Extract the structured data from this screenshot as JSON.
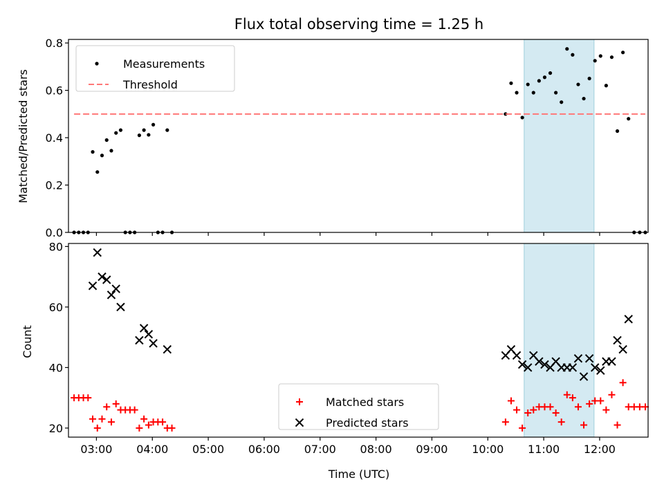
{
  "chart_data": [
    {
      "type": "scatter",
      "title": "Flux total observing time = 1.25 h",
      "xlabel": "",
      "ylabel": "Matched/Predicted stars",
      "xlim": [
        "02:30",
        "12:52"
      ],
      "ylim": [
        0,
        0.815
      ],
      "yticks": [
        "0.0",
        "0.2",
        "0.4",
        "0.6",
        "0.8"
      ],
      "shaded_interval": [
        "10:39",
        "11:54"
      ],
      "legend_position": "top-left",
      "series": [
        {
          "name": "Measurements",
          "marker": "dot",
          "color": "#000000",
          "points": [
            [
              "02:36",
              0
            ],
            [
              "02:41",
              0
            ],
            [
              "02:46",
              0
            ],
            [
              "02:51",
              0
            ],
            [
              "02:56",
              0.34
            ],
            [
              "03:01",
              0.255
            ],
            [
              "03:06",
              0.325
            ],
            [
              "03:11",
              0.39
            ],
            [
              "03:16",
              0.345
            ],
            [
              "03:21",
              0.42
            ],
            [
              "03:26",
              0.432
            ],
            [
              "03:31",
              0
            ],
            [
              "03:36",
              0
            ],
            [
              "03:41",
              0
            ],
            [
              "03:46",
              0.41
            ],
            [
              "03:51",
              0.432
            ],
            [
              "03:56",
              0.412
            ],
            [
              "04:01",
              0.455
            ],
            [
              "04:06",
              0
            ],
            [
              "04:11",
              0
            ],
            [
              "04:16",
              0.432
            ],
            [
              "04:21",
              0
            ],
            [
              "10:19",
              0.5
            ],
            [
              "10:25",
              0.63
            ],
            [
              "10:31",
              0.59
            ],
            [
              "10:37",
              0.485
            ],
            [
              "10:43",
              0.625
            ],
            [
              "10:49",
              0.59
            ],
            [
              "10:55",
              0.64
            ],
            [
              "11:01",
              0.655
            ],
            [
              "11:07",
              0.673
            ],
            [
              "11:13",
              0.59
            ],
            [
              "11:19",
              0.55
            ],
            [
              "11:25",
              0.775
            ],
            [
              "11:31",
              0.75
            ],
            [
              "11:37",
              0.625
            ],
            [
              "11:43",
              0.565
            ],
            [
              "11:49",
              0.65
            ],
            [
              "11:55",
              0.725
            ],
            [
              "12:01",
              0.745
            ],
            [
              "12:07",
              0.62
            ],
            [
              "12:13",
              0.74
            ],
            [
              "12:19",
              0.428
            ],
            [
              "12:25",
              0.76
            ],
            [
              "12:31",
              0.48
            ],
            [
              "12:37",
              0
            ],
            [
              "12:43",
              0
            ],
            [
              "12:49",
              0
            ]
          ]
        },
        {
          "name": "Threshold",
          "type": "line",
          "style": "dashed",
          "color": "#ff7777",
          "points": [
            [
              "02:36",
              0.5
            ],
            [
              "12:49",
              0.5
            ]
          ]
        }
      ]
    },
    {
      "type": "scatter",
      "title": "",
      "xlabel": "Time (UTC)",
      "ylabel": "Count",
      "xlim": [
        "02:30",
        "12:52"
      ],
      "ylim": [
        17,
        81
      ],
      "yticks": [
        "20",
        "40",
        "60",
        "80"
      ],
      "xticks": [
        "03:00",
        "04:00",
        "05:00",
        "06:00",
        "07:00",
        "08:00",
        "09:00",
        "10:00",
        "11:00",
        "12:00"
      ],
      "shaded_interval": [
        "10:39",
        "11:54"
      ],
      "legend_position": "bottom-center",
      "series": [
        {
          "name": "Matched stars",
          "marker": "plus",
          "color": "#ff0000",
          "points": [
            [
              "02:36",
              30
            ],
            [
              "02:41",
              30
            ],
            [
              "02:46",
              30
            ],
            [
              "02:51",
              30
            ],
            [
              "02:56",
              23
            ],
            [
              "03:01",
              20
            ],
            [
              "03:06",
              23
            ],
            [
              "03:11",
              27
            ],
            [
              "03:16",
              22
            ],
            [
              "03:21",
              28
            ],
            [
              "03:26",
              26
            ],
            [
              "03:31",
              26
            ],
            [
              "03:36",
              26
            ],
            [
              "03:41",
              26
            ],
            [
              "03:46",
              20
            ],
            [
              "03:51",
              23
            ],
            [
              "03:56",
              21
            ],
            [
              "04:01",
              22
            ],
            [
              "04:06",
              22
            ],
            [
              "04:11",
              22
            ],
            [
              "04:16",
              20
            ],
            [
              "04:21",
              20
            ],
            [
              "10:19",
              22
            ],
            [
              "10:25",
              29
            ],
            [
              "10:31",
              26
            ],
            [
              "10:37",
              20
            ],
            [
              "10:43",
              25
            ],
            [
              "10:49",
              26
            ],
            [
              "10:55",
              27
            ],
            [
              "11:01",
              27
            ],
            [
              "11:07",
              27
            ],
            [
              "11:13",
              25
            ],
            [
              "11:19",
              22
            ],
            [
              "11:25",
              31
            ],
            [
              "11:31",
              30
            ],
            [
              "11:37",
              27
            ],
            [
              "11:43",
              21
            ],
            [
              "11:49",
              28
            ],
            [
              "11:55",
              29
            ],
            [
              "12:01",
              29
            ],
            [
              "12:07",
              26
            ],
            [
              "12:13",
              31
            ],
            [
              "12:19",
              21
            ],
            [
              "12:25",
              35
            ],
            [
              "12:31",
              27
            ],
            [
              "12:37",
              27
            ],
            [
              "12:43",
              27
            ],
            [
              "12:49",
              27
            ]
          ]
        },
        {
          "name": "Predicted stars",
          "marker": "x",
          "color": "#000000",
          "points": [
            [
              "02:56",
              67
            ],
            [
              "03:01",
              78
            ],
            [
              "03:06",
              70
            ],
            [
              "03:11",
              69
            ],
            [
              "03:16",
              64
            ],
            [
              "03:21",
              66
            ],
            [
              "03:26",
              60
            ],
            [
              "03:46",
              49
            ],
            [
              "03:51",
              53
            ],
            [
              "03:56",
              51
            ],
            [
              "04:01",
              48
            ],
            [
              "04:16",
              46
            ],
            [
              "10:19",
              44
            ],
            [
              "10:25",
              46
            ],
            [
              "10:31",
              44
            ],
            [
              "10:37",
              41
            ],
            [
              "10:43",
              40
            ],
            [
              "10:49",
              44
            ],
            [
              "10:55",
              42
            ],
            [
              "11:01",
              41
            ],
            [
              "11:07",
              40
            ],
            [
              "11:13",
              42
            ],
            [
              "11:19",
              40
            ],
            [
              "11:25",
              40
            ],
            [
              "11:31",
              40
            ],
            [
              "11:37",
              43
            ],
            [
              "11:43",
              37
            ],
            [
              "11:49",
              43
            ],
            [
              "11:55",
              40
            ],
            [
              "12:01",
              39
            ],
            [
              "12:07",
              42
            ],
            [
              "12:13",
              42
            ],
            [
              "12:19",
              49
            ],
            [
              "12:25",
              46
            ],
            [
              "12:31",
              56
            ]
          ]
        }
      ]
    }
  ]
}
